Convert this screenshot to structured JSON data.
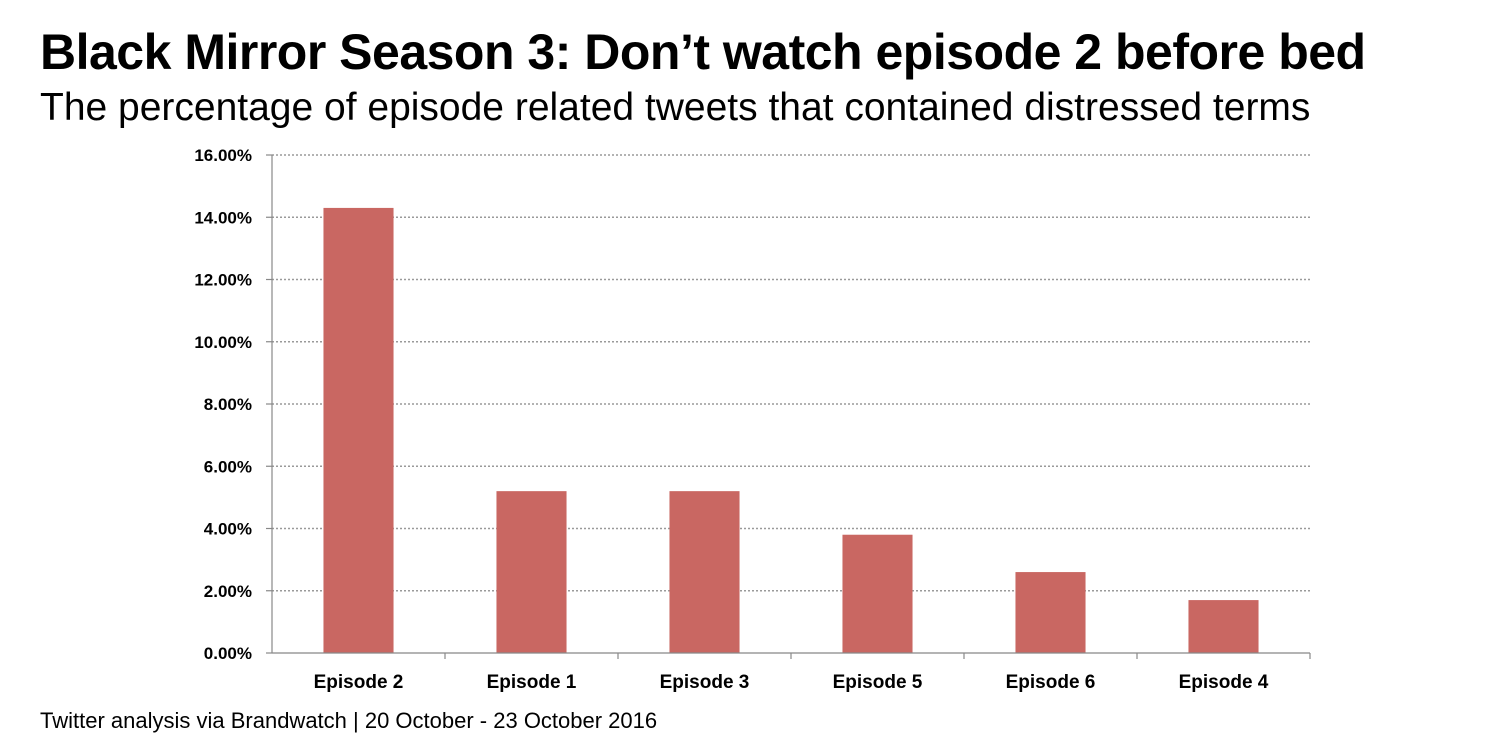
{
  "title": "Black Mirror Season 3: Don’t watch episode 2 before bed",
  "subtitle": "The percentage of episode related tweets that contained distressed terms",
  "source": "Twitter analysis via Brandwatch | 20 October - 23 October 2016",
  "colors": {
    "bar": "#c96762",
    "grid": "#9a9a9a",
    "axis": "#888888"
  },
  "chart_data": {
    "type": "bar",
    "categories": [
      "Episode 2",
      "Episode 1",
      "Episode 3",
      "Episode 5",
      "Episode 6",
      "Episode 4"
    ],
    "values": [
      14.3,
      5.2,
      5.2,
      3.8,
      2.6,
      1.7
    ],
    "unit": "%",
    "ylim": [
      0,
      16
    ],
    "yticks": [
      0,
      2,
      4,
      6,
      8,
      10,
      12,
      14,
      16
    ],
    "ytick_labels": [
      "0.00%",
      "2.00%",
      "4.00%",
      "6.00%",
      "8.00%",
      "10.00%",
      "12.00%",
      "14.00%",
      "16.00%"
    ],
    "grid": true,
    "legend": false,
    "xlabel": "",
    "ylabel": ""
  }
}
